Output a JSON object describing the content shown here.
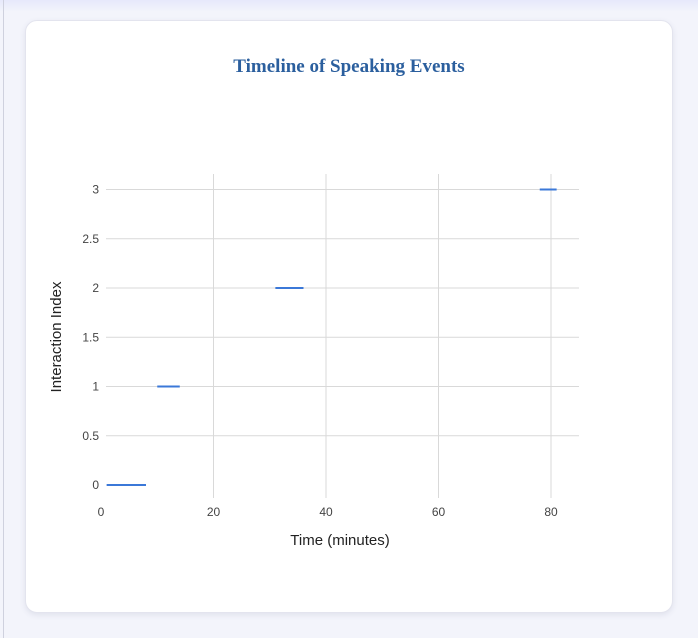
{
  "chart_data": {
    "type": "timeline",
    "title": "Timeline of Speaking Events",
    "xlabel": "Time (minutes)",
    "ylabel": "Interaction Index",
    "xlim": [
      0,
      85
    ],
    "ylim": [
      0,
      3.2
    ],
    "x_ticks": [
      0,
      20,
      40,
      60,
      80
    ],
    "y_ticks": [
      0,
      0.5,
      1,
      1.5,
      2,
      2.5,
      3
    ],
    "y_tick_labels": [
      "0",
      "0.5",
      "1",
      "1.5",
      "2",
      "2.5",
      "3"
    ],
    "grid": true,
    "series": [
      {
        "color": "#3b78d8",
        "segments": [
          {
            "y": 0,
            "start": 1,
            "end": 8
          },
          {
            "y": 1,
            "start": 10,
            "end": 14
          },
          {
            "y": 2,
            "start": 31,
            "end": 36
          },
          {
            "y": 3,
            "start": 78,
            "end": 81
          }
        ]
      }
    ]
  }
}
